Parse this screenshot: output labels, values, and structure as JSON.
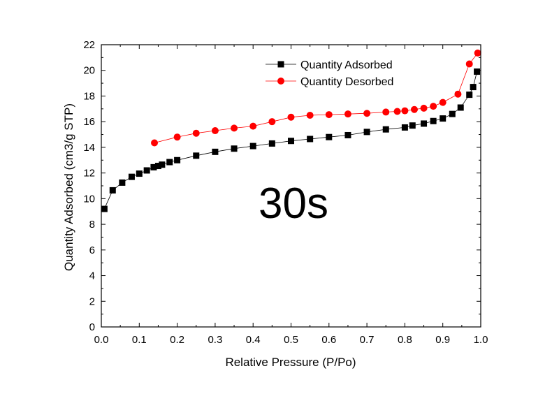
{
  "chart_data": {
    "type": "scatter",
    "xlabel": "Relative Pressure (P/Po)",
    "ylabel": "Quantity Adsorbed (cm3/g STP)",
    "xlim": [
      0.0,
      1.0
    ],
    "ylim": [
      0,
      22
    ],
    "xticks": [
      "0.0",
      "0.1",
      "0.2",
      "0.3",
      "0.4",
      "0.5",
      "0.6",
      "0.7",
      "0.8",
      "0.9",
      "1.0"
    ],
    "yticks": [
      "0",
      "2",
      "4",
      "6",
      "8",
      "10",
      "12",
      "14",
      "16",
      "18",
      "20",
      "22"
    ],
    "annotation": "30s",
    "grid": false,
    "legend_position": "top-right",
    "series": [
      {
        "name": "Quantity Adsorbed",
        "color": "#000000",
        "marker": "square",
        "x": [
          0.008,
          0.03,
          0.055,
          0.08,
          0.1,
          0.12,
          0.138,
          0.15,
          0.16,
          0.18,
          0.2,
          0.25,
          0.3,
          0.35,
          0.4,
          0.45,
          0.5,
          0.55,
          0.6,
          0.65,
          0.7,
          0.75,
          0.8,
          0.82,
          0.85,
          0.875,
          0.9,
          0.925,
          0.947,
          0.97,
          0.98,
          0.99
        ],
        "y": [
          9.2,
          10.65,
          11.25,
          11.7,
          11.95,
          12.2,
          12.45,
          12.55,
          12.65,
          12.85,
          13.0,
          13.35,
          13.65,
          13.9,
          14.1,
          14.3,
          14.5,
          14.65,
          14.8,
          14.95,
          15.2,
          15.4,
          15.55,
          15.7,
          15.85,
          16.05,
          16.25,
          16.6,
          17.1,
          18.1,
          18.7,
          19.9
        ]
      },
      {
        "name": "Quantity Desorbed",
        "color": "#ff0000",
        "marker": "circle",
        "x": [
          0.14,
          0.2,
          0.25,
          0.3,
          0.35,
          0.4,
          0.45,
          0.5,
          0.55,
          0.6,
          0.65,
          0.7,
          0.75,
          0.78,
          0.8,
          0.825,
          0.85,
          0.875,
          0.9,
          0.94,
          0.97,
          0.992
        ],
        "y": [
          14.35,
          14.8,
          15.1,
          15.3,
          15.5,
          15.65,
          16.0,
          16.35,
          16.5,
          16.55,
          16.6,
          16.65,
          16.75,
          16.8,
          16.85,
          16.95,
          17.05,
          17.2,
          17.5,
          18.15,
          20.5,
          21.35
        ]
      }
    ]
  }
}
